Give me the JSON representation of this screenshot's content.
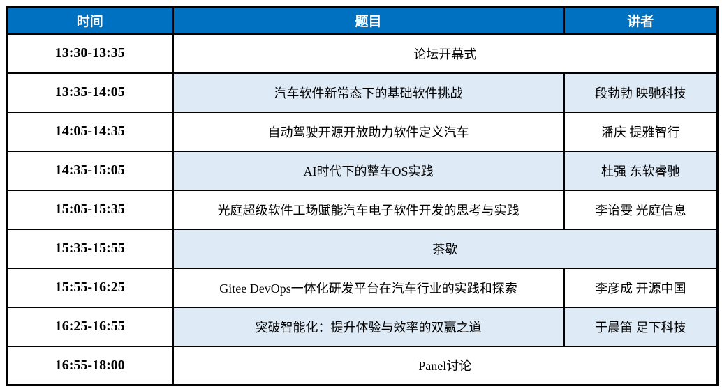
{
  "table": {
    "title": "forum-agenda",
    "columns": [
      {
        "label": "时间"
      },
      {
        "label": "题目"
      },
      {
        "label": "讲者"
      }
    ],
    "rows": [
      {
        "time": "13:30-13:35",
        "topic": "论坛开幕式",
        "speaker": "",
        "merged": true,
        "highlight": false
      },
      {
        "time": "13:35-14:05",
        "topic": "汽车软件新常态下的基础软件挑战",
        "speaker": "段勃勃 映驰科技",
        "merged": false,
        "highlight": true
      },
      {
        "time": "14:05-14:35",
        "topic": "自动驾驶开源开放助力软件定义汽车",
        "speaker": "潘庆 提雅智行",
        "merged": false,
        "highlight": false
      },
      {
        "time": "14:35-15:05",
        "topic": "AI时代下的整车OS实践",
        "speaker": "杜强 东软睿驰",
        "merged": false,
        "highlight": true
      },
      {
        "time": "15:05-15:35",
        "topic": "光庭超级软件工场赋能汽车电子软件开发的思考与实践",
        "speaker": "李诒雯 光庭信息",
        "merged": false,
        "highlight": false
      },
      {
        "time": "15:35-15:55",
        "topic": "茶歇",
        "speaker": "",
        "merged": true,
        "highlight": true
      },
      {
        "time": "15:55-16:25",
        "topic": "Gitee DevOps一体化研发平台在汽车行业的实践和探索",
        "speaker": "李彦成 开源中国",
        "merged": false,
        "highlight": false
      },
      {
        "time": "16:25-16:55",
        "topic": "突破智能化：提升体验与效率的双赢之道",
        "speaker": "于晨笛 足下科技",
        "merged": false,
        "highlight": true
      },
      {
        "time": "16:55-18:00",
        "topic": "Panel讨论",
        "speaker": "",
        "merged": true,
        "highlight": false
      }
    ],
    "colors": {
      "header_bg": "#0070C0",
      "header_text": "#FFFFFF",
      "highlight_bg": "#DEEAF6",
      "row_bg": "#FFFFFF",
      "border": "#000000",
      "text": "#000000"
    }
  }
}
